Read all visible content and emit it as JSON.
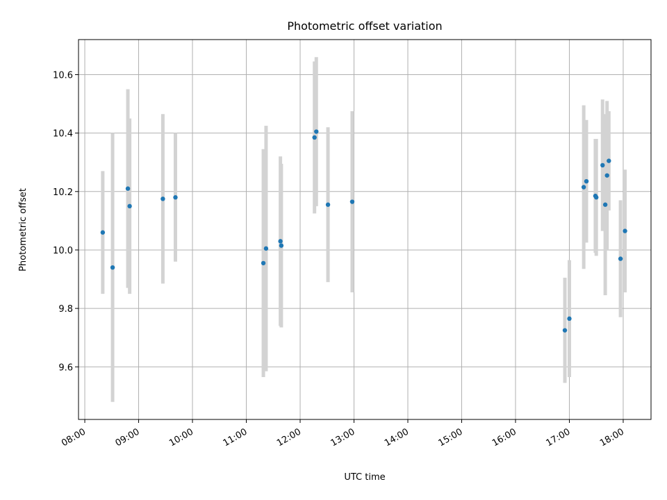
{
  "chart_data": {
    "type": "scatter",
    "title": "Photometric offset variation",
    "xlabel": "UTC time",
    "ylabel": "Photometric offset",
    "x_ticks": [
      "08:00",
      "09:00",
      "10:00",
      "11:00",
      "12:00",
      "13:00",
      "14:00",
      "15:00",
      "16:00",
      "17:00",
      "18:00"
    ],
    "y_ticks": [
      "9.6",
      "9.8",
      "10.0",
      "10.2",
      "10.4",
      "10.6"
    ],
    "xlim": [
      "07:53",
      "18:31"
    ],
    "ylim": [
      9.42,
      10.72
    ],
    "grid": true,
    "colors": {
      "point": "#1f77b4",
      "errorbar": "#d3d3d3",
      "grid": "#b0b0b0"
    },
    "points": [
      {
        "x": "08:20",
        "y": 10.06,
        "err": 0.21
      },
      {
        "x": "08:31",
        "y": 9.94,
        "err": 0.46
      },
      {
        "x": "08:48",
        "y": 10.21,
        "err": 0.34
      },
      {
        "x": "08:50",
        "y": 10.15,
        "err": 0.3
      },
      {
        "x": "09:27",
        "y": 10.175,
        "err": 0.29
      },
      {
        "x": "09:41",
        "y": 10.18,
        "err": 0.22
      },
      {
        "x": "11:19",
        "y": 9.955,
        "err": 0.39
      },
      {
        "x": "11:22",
        "y": 10.005,
        "err": 0.42
      },
      {
        "x": "11:38",
        "y": 10.03,
        "err": 0.29
      },
      {
        "x": "11:39",
        "y": 10.015,
        "err": 0.28
      },
      {
        "x": "12:16",
        "y": 10.385,
        "err": 0.26
      },
      {
        "x": "12:18",
        "y": 10.405,
        "err": 0.255
      },
      {
        "x": "12:31",
        "y": 10.155,
        "err": 0.265
      },
      {
        "x": "12:58",
        "y": 10.165,
        "err": 0.31
      },
      {
        "x": "16:55",
        "y": 9.725,
        "err": 0.18
      },
      {
        "x": "17:00",
        "y": 9.765,
        "err": 0.2
      },
      {
        "x": "17:16",
        "y": 10.215,
        "err": 0.28
      },
      {
        "x": "17:19",
        "y": 10.235,
        "err": 0.21
      },
      {
        "x": "17:29",
        "y": 10.185,
        "err": 0.195
      },
      {
        "x": "17:30",
        "y": 10.18,
        "err": 0.2
      },
      {
        "x": "17:37",
        "y": 10.29,
        "err": 0.225
      },
      {
        "x": "17:40",
        "y": 10.155,
        "err": 0.31
      },
      {
        "x": "17:42",
        "y": 10.255,
        "err": 0.255
      },
      {
        "x": "17:44",
        "y": 10.305,
        "err": 0.17
      },
      {
        "x": "17:57",
        "y": 9.97,
        "err": 0.2
      },
      {
        "x": "18:02",
        "y": 10.065,
        "err": 0.21
      }
    ]
  }
}
